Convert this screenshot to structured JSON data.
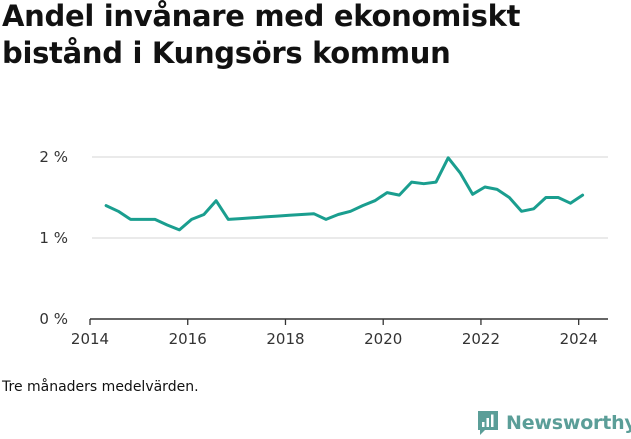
{
  "title": "Andel invånare med ekonomiskt bistånd i Kungsörs kommun",
  "note": "Tre månaders medelvärden.",
  "brand": {
    "name": "Newsworthy",
    "icon": "bar-chart-speech-bubble-icon",
    "color": "#5b9e98"
  },
  "colors": {
    "line": "#1a9e8f",
    "grid": "#dddddd",
    "axis": "#333333"
  },
  "chart_data": {
    "type": "line",
    "title": "Andel invånare med ekonomiskt bistånd i Kungsörs kommun",
    "xlabel": "",
    "ylabel": "",
    "xlim": [
      2014,
      2024.6
    ],
    "ylim": [
      0,
      2
    ],
    "x_ticks": [
      2014,
      2016,
      2018,
      2020,
      2022,
      2024
    ],
    "x_tick_labels": [
      "2014",
      "2016",
      "2018",
      "2020",
      "2022",
      "2024"
    ],
    "y_ticks": [
      0,
      1,
      2
    ],
    "y_tick_labels": [
      "0 %",
      "1 %",
      "2 %"
    ],
    "grid": "horizontal",
    "series": [
      {
        "x": [
          2014.33,
          2014.58,
          2014.83,
          2015.08,
          2015.33,
          2015.58,
          2015.83,
          2016.08,
          2016.33,
          2016.58,
          2016.83,
          2017.08,
          2017.33,
          2017.58,
          2017.83,
          2018.08,
          2018.33,
          2018.58,
          2018.83,
          2019.08,
          2019.33,
          2019.58,
          2019.83,
          2020.08,
          2020.33,
          2020.58,
          2020.83,
          2021.08,
          2021.33,
          2021.58,
          2021.83,
          2022.08,
          2022.33,
          2022.58,
          2022.83,
          2023.08,
          2023.33,
          2023.58,
          2023.83,
          2024.08
        ],
        "values": [
          1.4,
          1.33,
          1.23,
          1.23,
          1.23,
          1.16,
          1.1,
          1.23,
          1.29,
          1.46,
          1.23,
          1.24,
          1.25,
          1.26,
          1.27,
          1.28,
          1.29,
          1.3,
          1.23,
          1.29,
          1.33,
          1.4,
          1.46,
          1.56,
          1.53,
          1.69,
          1.67,
          1.69,
          1.99,
          1.8,
          1.54,
          1.63,
          1.6,
          1.5,
          1.33,
          1.36,
          1.5,
          1.5,
          1.43,
          1.53
        ]
      }
    ]
  }
}
